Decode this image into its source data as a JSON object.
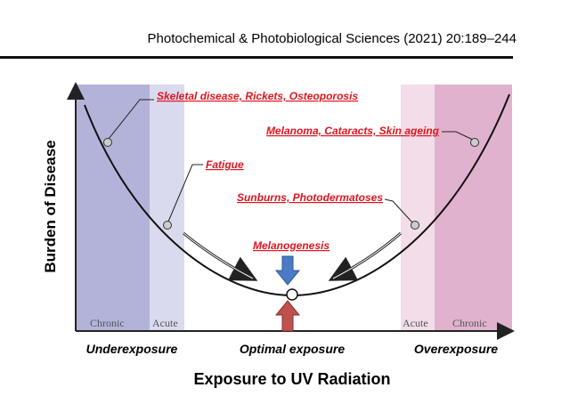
{
  "header": {
    "journal": "Photochemical & Photobiological Sciences (2021) 20:189–244"
  },
  "figure": {
    "y_axis_label": "Burden of Disease",
    "x_axis_label": "Exposure to UV Radiation",
    "zones": [
      "Underexposure",
      "Optimal exposure",
      "Overexposure"
    ],
    "bands": [
      "Chronic",
      "Acute",
      "Acute",
      "Chronic"
    ],
    "annotations": [
      "Skeletal disease, Rickets, Osteoporosis",
      "Fatigue",
      "Melanoma, Cataracts, Skin ageing",
      "Sunburns, Photodermatoses",
      "Melanogenesis"
    ]
  }
}
